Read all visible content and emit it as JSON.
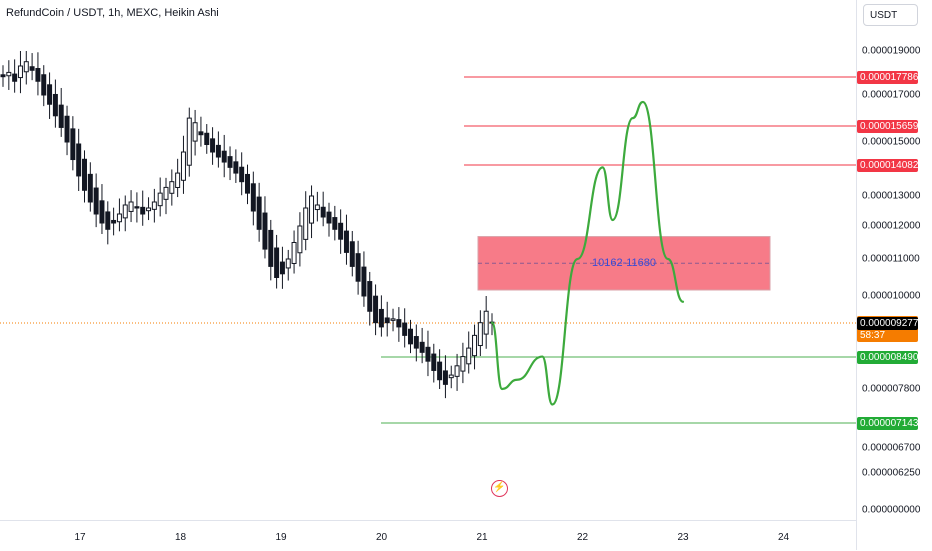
{
  "header": {
    "title": "RefundCoin / USDT, 1h, MEXC, Heikin Ashi"
  },
  "price_axis": {
    "currency": "USDT",
    "ticks": [
      {
        "value": 1.9e-05,
        "label": "0.000019000"
      },
      {
        "value": 1.7e-05,
        "label": "0.000017000"
      },
      {
        "value": 1.5e-05,
        "label": "0.000015000"
      },
      {
        "value": 1.3e-05,
        "label": "0.000013000"
      },
      {
        "value": 1.2e-05,
        "label": "0.000012000"
      },
      {
        "value": 1.1e-05,
        "label": "0.000011000"
      },
      {
        "value": 1e-05,
        "label": "0.000010000"
      },
      {
        "value": 7.8e-06,
        "label": "0.000007800"
      },
      {
        "value": 6.7e-06,
        "label": "0.000006700"
      },
      {
        "value": 6.25e-06,
        "label": "0.000006250"
      },
      {
        "value": 0.0,
        "label": "0.000000000"
      }
    ],
    "price_labels": [
      {
        "value": 1.7786e-05,
        "label": "0.000017786",
        "color": "#f23645"
      },
      {
        "value": 1.5659e-05,
        "label": "0.000015659",
        "color": "#f23645"
      },
      {
        "value": 1.4082e-05,
        "label": "0.000014082",
        "color": "#f23645"
      },
      {
        "value": 9.292e-06,
        "label": "0.000009292",
        "sub": "58:37",
        "color": "#f57c00"
      },
      {
        "value": 9.277e-06,
        "label": "0.000009277",
        "color": "#000000"
      },
      {
        "value": 8.49e-06,
        "label": "0.000008490",
        "color": "#22ab36"
      },
      {
        "value": 7.143e-06,
        "label": "0.000007143",
        "color": "#22ab36"
      }
    ]
  },
  "time_axis": {
    "ticks": [
      "17",
      "18",
      "19",
      "20",
      "21",
      "22",
      "23",
      "24"
    ]
  },
  "chart_data": {
    "type": "candlestick",
    "style": "Heikin Ashi",
    "symbol": "RefundCoin / USDT",
    "interval": "1h",
    "exchange": "MEXC",
    "current_price": 9.292e-06,
    "countdown": "58:37",
    "resistance_levels": [
      1.7786e-05,
      1.5659e-05,
      1.4082e-05
    ],
    "support_levels": [
      8.49e-06,
      7.143e-06
    ],
    "target_zone": {
      "low": 1.0162e-05,
      "high": 1.168e-05,
      "label": "10162-11680",
      "fill": "#f77b88"
    },
    "series_close": [
      1.78e-05,
      1.8e-05,
      1.76e-05,
      1.83e-05,
      1.85e-05,
      1.81e-05,
      1.76e-05,
      1.7e-05,
      1.66e-05,
      1.61e-05,
      1.56e-05,
      1.5e-05,
      1.43e-05,
      1.37e-05,
      1.32e-05,
      1.28e-05,
      1.24e-05,
      1.21e-05,
      1.19e-05,
      1.21e-05,
      1.24e-05,
      1.27e-05,
      1.28e-05,
      1.26e-05,
      1.24e-05,
      1.26e-05,
      1.28e-05,
      1.31e-05,
      1.33e-05,
      1.35e-05,
      1.38e-05,
      1.46e-05,
      1.6e-05,
      1.58e-05,
      1.53e-05,
      1.49e-05,
      1.46e-05,
      1.44e-05,
      1.42e-05,
      1.4e-05,
      1.38e-05,
      1.35e-05,
      1.31e-05,
      1.25e-05,
      1.19e-05,
      1.13e-05,
      1.08e-05,
      1.05e-05,
      1.06e-05,
      1.1e-05,
      1.15e-05,
      1.2e-05,
      1.26e-05,
      1.3e-05,
      1.27e-05,
      1.23e-05,
      1.21e-05,
      1.19e-05,
      1.16e-05,
      1.12e-05,
      1.08e-05,
      1.04e-05,
      1e-05,
      9.6e-06,
      9.3e-06,
      9.2e-06,
      9.3e-06,
      9.4e-06,
      9.2e-06,
      9e-06,
      8.8e-06,
      8.7e-06,
      8.6e-06,
      8.4e-06,
      8.2e-06,
      8e-06,
      7.9e-06,
      8.1e-06,
      8.3e-06,
      8.5e-06,
      8.7e-06,
      9e-06,
      9.3e-06,
      9.6e-06,
      9.3e-06
    ],
    "projection_path": [
      [
        "21.1",
        9.3e-06
      ],
      [
        "21.2",
        7.8e-06
      ],
      [
        "21.35",
        8e-06
      ],
      [
        "21.6",
        8.5e-06
      ],
      [
        "21.7",
        7.5e-06
      ],
      [
        "21.95",
        1.1e-05
      ],
      [
        "22.2",
        1.4e-05
      ],
      [
        "22.3",
        1.22e-05
      ],
      [
        "22.5",
        1.6e-05
      ],
      [
        "22.6",
        1.67e-05
      ],
      [
        "22.85",
        1.1e-05
      ],
      [
        "23.0",
        9.85e-06
      ]
    ]
  }
}
